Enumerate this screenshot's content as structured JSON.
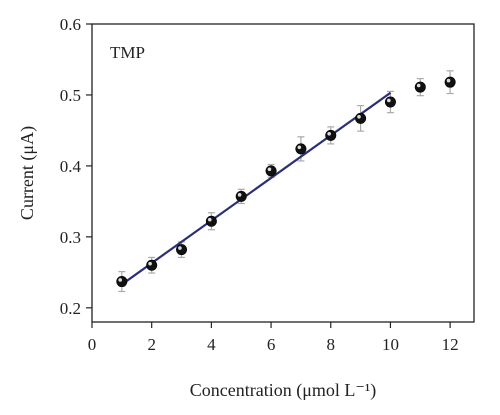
{
  "chart_data": {
    "type": "scatter",
    "annotation": "TMP",
    "xlabel": "Concentration (μmol L⁻¹)",
    "ylabel": "Current (μA)",
    "xlim": [
      0,
      12.8
    ],
    "ylim": [
      0.18,
      0.6
    ],
    "x_ticks": [
      0,
      2,
      4,
      6,
      8,
      10,
      12
    ],
    "y_ticks": [
      0.2,
      0.3,
      0.4,
      0.5,
      0.6
    ],
    "x_tick_labels": [
      "0",
      "2",
      "4",
      "6",
      "8",
      "10",
      "12"
    ],
    "y_tick_labels": [
      "0.2",
      "0.3",
      "0.4",
      "0.5",
      "0.6"
    ],
    "grid": false,
    "colors": {
      "fit_line": "#2b2f7a",
      "marker": "#111111",
      "error_bar": "#aaaaaa",
      "axis": "#222222"
    },
    "series": [
      {
        "x": [
          1,
          2,
          3,
          4,
          5,
          6,
          7,
          8,
          9,
          10,
          11,
          12
        ],
        "y": [
          0.237,
          0.26,
          0.282,
          0.322,
          0.357,
          0.393,
          0.424,
          0.443,
          0.467,
          0.49,
          0.511,
          0.518
        ],
        "error": [
          0.014,
          0.011,
          0.011,
          0.012,
          0.01,
          0.009,
          0.017,
          0.012,
          0.018,
          0.015,
          0.012,
          0.016
        ]
      }
    ],
    "fit_line": {
      "x": [
        1,
        10
      ],
      "y": [
        0.233,
        0.503
      ]
    }
  }
}
